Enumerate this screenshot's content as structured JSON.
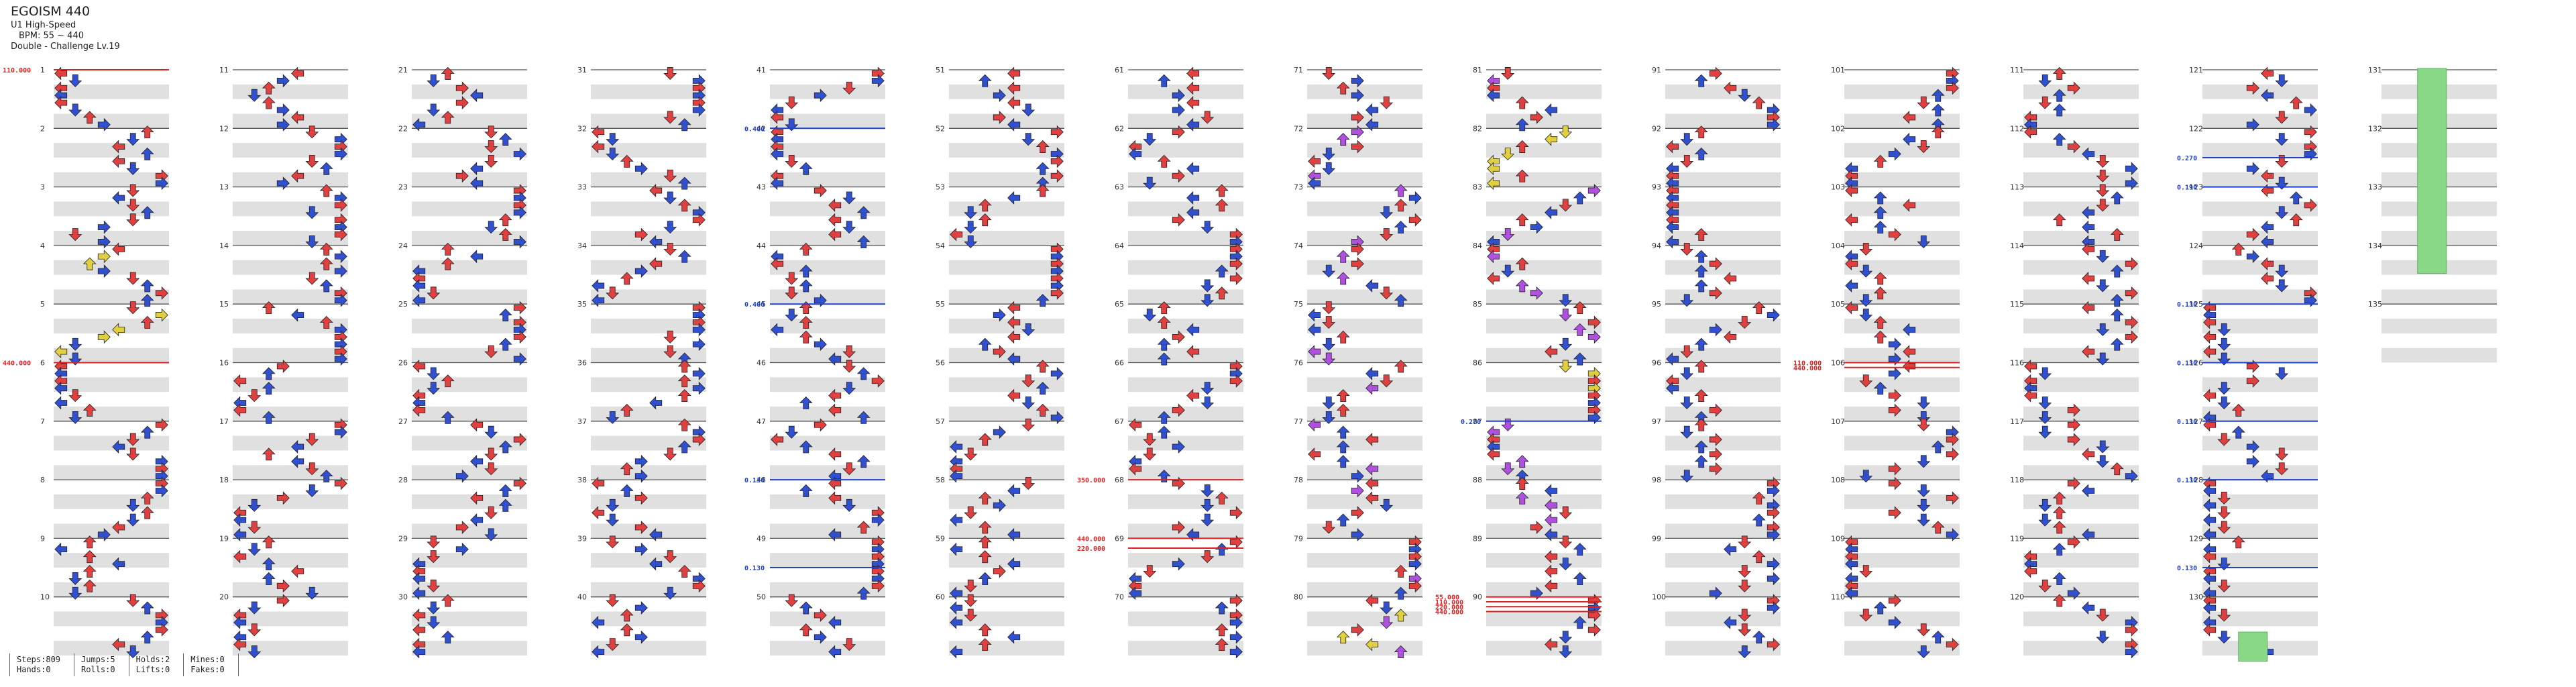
{
  "song": {
    "title": "EGOISM 440",
    "speed_mod": "U1 High-Speed",
    "bpm": "BPM: 55 ~ 440",
    "difficulty": "Double - Challenge Lv.19"
  },
  "stats": {
    "steps": "Steps:809",
    "hands": "Hands:0",
    "jumps": "Jumps:5",
    "rolls": "Rolls:0",
    "holds": "Holds:2",
    "lifts": "Lifts:0",
    "mines": "Mines:0",
    "fakes": "Fakes:0"
  },
  "chart_data": {
    "type": "step-chart",
    "style": "Double (8 panels)",
    "measures_per_column": 10,
    "total_measures": 135,
    "measure_labels": [
      "1",
      "2",
      "3",
      "4",
      "5",
      "6",
      "7",
      "8",
      "9",
      "10",
      "11",
      "12",
      "13",
      "14",
      "15",
      "16",
      "17",
      "18",
      "19",
      "20",
      "21",
      "22",
      "23",
      "24",
      "25",
      "26",
      "27",
      "28",
      "29",
      "30",
      "31",
      "32",
      "33",
      "34",
      "35",
      "36",
      "37",
      "38",
      "39",
      "40",
      "41",
      "42",
      "43",
      "44",
      "45",
      "46",
      "47",
      "48",
      "49",
      "50",
      "51",
      "52",
      "53",
      "54",
      "55",
      "56",
      "57",
      "58",
      "59",
      "60",
      "61",
      "62",
      "63",
      "64",
      "65",
      "66",
      "67",
      "68",
      "69",
      "70",
      "71",
      "72",
      "73",
      "74",
      "75",
      "76",
      "77",
      "78",
      "79",
      "80",
      "81",
      "82",
      "83",
      "84",
      "85",
      "86",
      "87",
      "88",
      "89",
      "90",
      "91",
      "92",
      "93",
      "94",
      "95",
      "96",
      "97",
      "98",
      "99",
      "100",
      "101",
      "102",
      "103",
      "104",
      "105",
      "106",
      "107",
      "108",
      "109",
      "110",
      "111",
      "112",
      "113",
      "114",
      "115",
      "116",
      "117",
      "118",
      "119",
      "120",
      "121",
      "122",
      "123",
      "124",
      "125",
      "126",
      "127",
      "128",
      "129",
      "130",
      "131",
      "132",
      "133",
      "134",
      "135"
    ],
    "bpm_changes": [
      {
        "measure": 1,
        "bpm": "110.000"
      },
      {
        "measure": 6,
        "bpm": "440.000"
      },
      {
        "measure": 68,
        "bpm": "350.000"
      },
      {
        "measure": 69,
        "bpm": "440.000"
      },
      {
        "measure": 69.5,
        "bpm": "220.000"
      },
      {
        "measure": 90,
        "bpm": "55.000"
      },
      {
        "measure": 90.25,
        "bpm": "110.000"
      },
      {
        "measure": 90.5,
        "bpm": "220.000"
      },
      {
        "measure": 90.75,
        "bpm": "440.000"
      },
      {
        "measure": 106,
        "bpm": "110.000"
      },
      {
        "measure": 106.25,
        "bpm": "440.000"
      }
    ],
    "scroll_changes": [
      {
        "measure": 42,
        "speed": "0.400"
      },
      {
        "measure": 45,
        "speed": "0.400"
      },
      {
        "measure": 48,
        "speed": "0.130"
      },
      {
        "measure": 49.5,
        "speed": "0.130"
      },
      {
        "measure": 87,
        "speed": "0.270"
      },
      {
        "measure": 122.5,
        "speed": "0.270"
      },
      {
        "measure": 123,
        "speed": "0.190"
      },
      {
        "measure": 125,
        "speed": "0.130"
      },
      {
        "measure": 126,
        "speed": "0.130"
      },
      {
        "measure": 127,
        "speed": "0.130"
      },
      {
        "measure": 128,
        "speed": "0.130"
      },
      {
        "measure": 129.5,
        "speed": "0.130"
      }
    ],
    "note_colors": {
      "quarter": "#e04040",
      "eighth": "#3050d0",
      "sixteenth": "#b050e0",
      "twelfth": "#e0d040",
      "hold": "#88d888",
      "bpm": "#e02020",
      "scroll": "#2040d0"
    }
  }
}
